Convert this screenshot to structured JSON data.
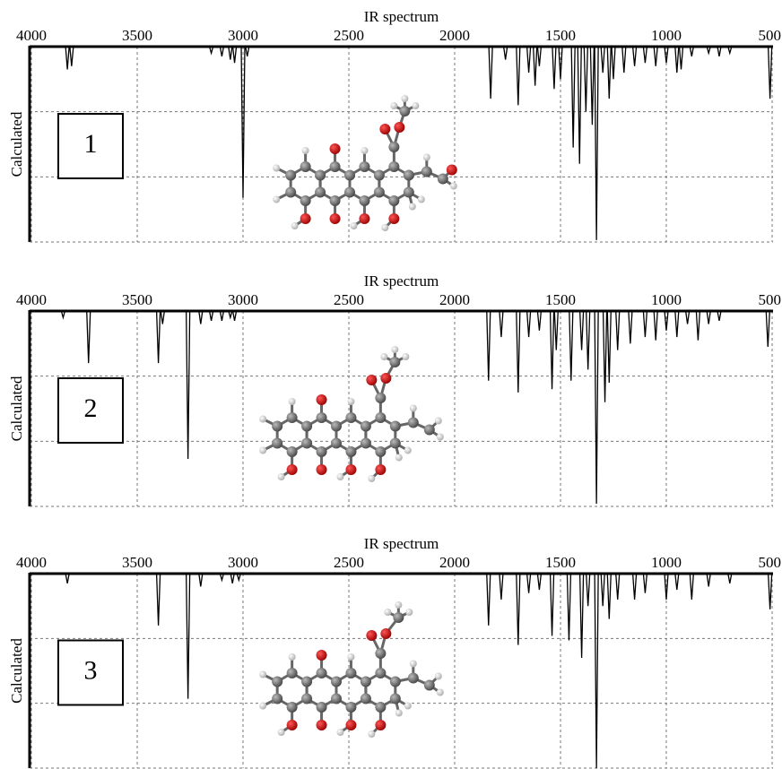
{
  "chart_data": [
    {
      "type": "stick",
      "title": "IR spectrum",
      "ylabel": "Calculated",
      "label": "1",
      "color": "#000000",
      "xlim": [
        4000,
        500
      ],
      "xticks": [
        4000,
        3500,
        3000,
        2500,
        2000,
        1500,
        1000,
        500
      ],
      "ylim": [
        0,
        3
      ],
      "ygrid": [
        1,
        2
      ],
      "x": [
        3830,
        3810,
        3150,
        3100,
        3060,
        3040,
        3000,
        2980,
        1830,
        1760,
        1700,
        1650,
        1620,
        1600,
        1530,
        1500,
        1440,
        1410,
        1380,
        1350,
        1330,
        1300,
        1270,
        1250,
        1200,
        1150,
        1100,
        1050,
        1000,
        950,
        930,
        880,
        800,
        750,
        700,
        510
      ],
      "values": [
        2.65,
        2.7,
        2.9,
        2.85,
        2.8,
        2.75,
        0.68,
        2.85,
        2.2,
        2.8,
        2.1,
        2.6,
        2.4,
        2.7,
        2.35,
        2.5,
        1.45,
        1.2,
        2.0,
        1.8,
        0.03,
        2.6,
        2.2,
        2.5,
        2.6,
        2.7,
        2.75,
        2.7,
        2.75,
        2.6,
        2.65,
        2.85,
        2.9,
        2.85,
        2.9,
        2.2
      ]
    },
    {
      "type": "stick",
      "title": "IR spectrum",
      "ylabel": "Calculated",
      "label": "2",
      "color": "#000000",
      "xlim": [
        4000,
        500
      ],
      "xticks": [
        4000,
        3500,
        3000,
        2500,
        2000,
        1500,
        1000,
        500
      ],
      "ylim": [
        0,
        3
      ],
      "ygrid": [
        1,
        2
      ],
      "x": [
        3850,
        3730,
        3400,
        3380,
        3260,
        3200,
        3150,
        3100,
        3060,
        3040,
        1840,
        1780,
        1700,
        1650,
        1600,
        1540,
        1520,
        1450,
        1400,
        1370,
        1330,
        1290,
        1270,
        1230,
        1170,
        1100,
        1050,
        1000,
        950,
        900,
        850,
        800,
        750,
        520
      ],
      "values": [
        2.9,
        2.2,
        2.2,
        2.8,
        0.73,
        2.8,
        2.85,
        2.85,
        2.9,
        2.85,
        1.93,
        2.6,
        1.75,
        2.6,
        2.7,
        1.8,
        2.4,
        1.93,
        2.4,
        2.1,
        0.04,
        1.6,
        1.9,
        2.4,
        2.5,
        2.6,
        2.55,
        2.7,
        2.6,
        2.8,
        2.55,
        2.8,
        2.85,
        2.45
      ]
    },
    {
      "type": "stick",
      "title": "IR spectrum",
      "ylabel": "Calculated",
      "label": "3",
      "color": "#000000",
      "xlim": [
        4000,
        500
      ],
      "xticks": [
        4000,
        3500,
        3000,
        2500,
        2000,
        1500,
        1000,
        500
      ],
      "ylim": [
        0,
        3
      ],
      "ygrid": [
        1,
        2
      ],
      "x": [
        3830,
        3400,
        3260,
        3200,
        3100,
        3050,
        3020,
        1840,
        1780,
        1700,
        1650,
        1600,
        1540,
        1460,
        1400,
        1370,
        1330,
        1300,
        1270,
        1230,
        1150,
        1100,
        1000,
        950,
        880,
        800,
        700,
        510
      ],
      "values": [
        2.85,
        2.2,
        1.07,
        2.8,
        2.9,
        2.85,
        2.9,
        2.2,
        2.6,
        1.9,
        2.7,
        2.75,
        2.04,
        1.97,
        1.7,
        2.5,
        0.0,
        2.5,
        2.3,
        2.6,
        2.6,
        2.7,
        2.6,
        2.75,
        2.6,
        2.8,
        2.85,
        2.45
      ]
    }
  ]
}
